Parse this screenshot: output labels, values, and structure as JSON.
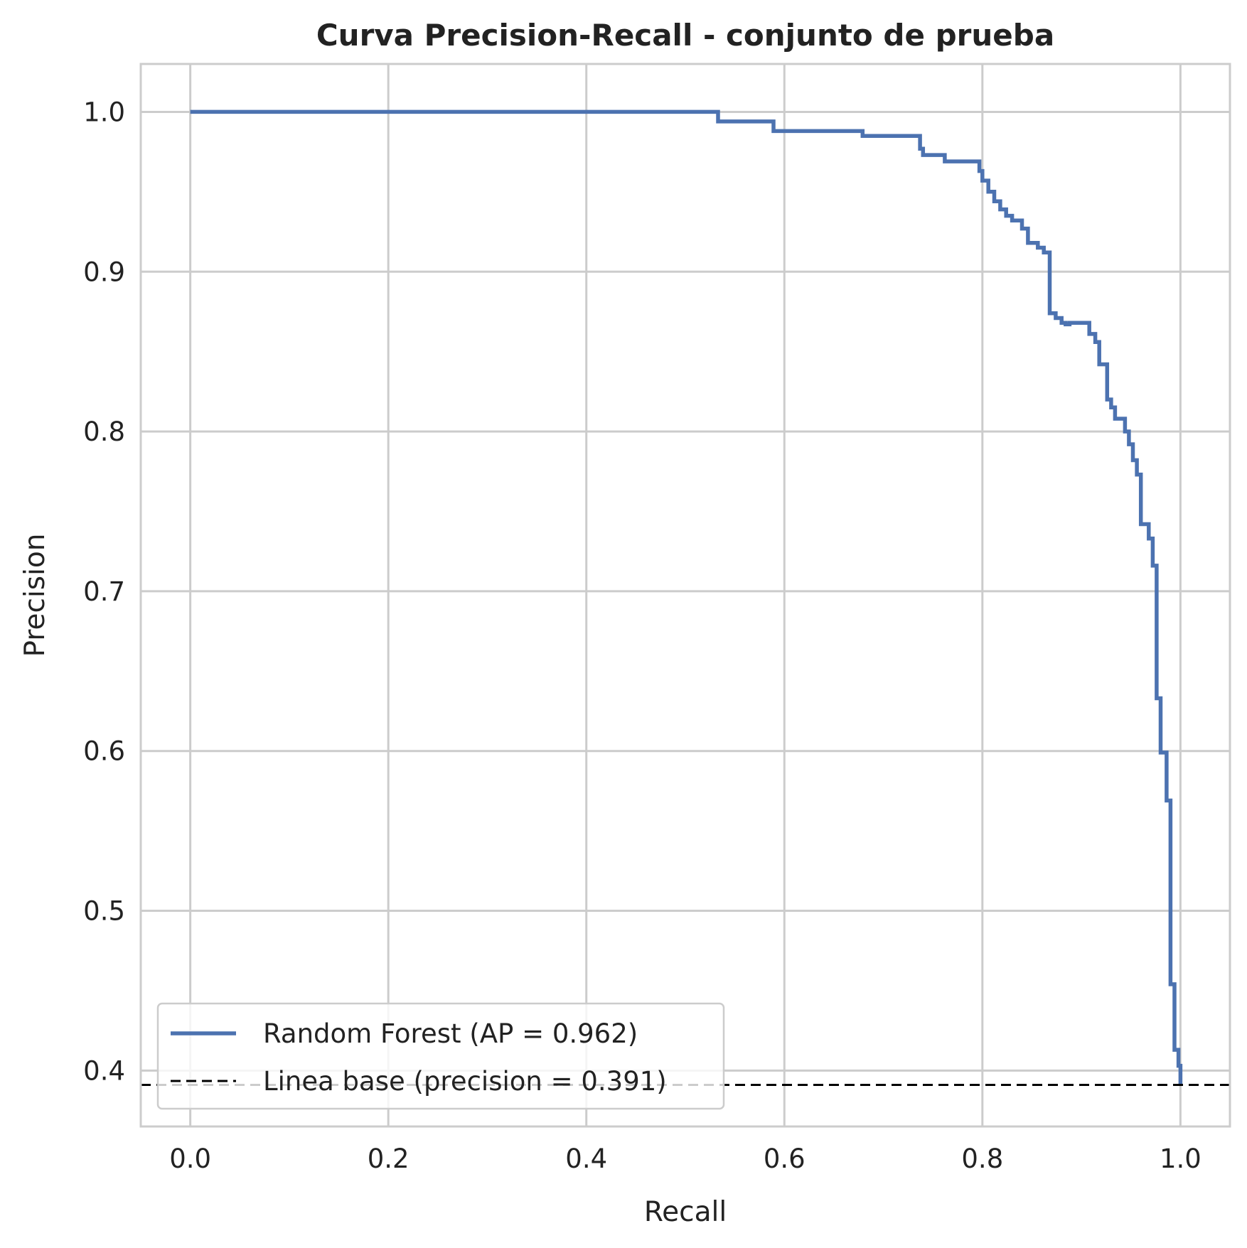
{
  "chart_data": {
    "type": "line",
    "title": "Curva Precision-Recall - conjunto de prueba",
    "xlabel": "Recall",
    "ylabel": "Precision",
    "xlim": [
      -0.05,
      1.05
    ],
    "ylim": [
      0.365,
      1.03
    ],
    "xticks": [
      0.0,
      0.2,
      0.4,
      0.6,
      0.8,
      1.0
    ],
    "xtick_labels": [
      "0.0",
      "0.2",
      "0.4",
      "0.6",
      "0.8",
      "1.0"
    ],
    "yticks": [
      0.4,
      0.5,
      0.6,
      0.7,
      0.8,
      0.9,
      1.0
    ],
    "ytick_labels": [
      "0.4",
      "0.5",
      "0.6",
      "0.7",
      "0.8",
      "0.9",
      "1.0"
    ],
    "grid": true,
    "legend_position": "lower-left",
    "series": [
      {
        "name": "Random Forest (AP = 0.962)",
        "color": "#4c72b0",
        "style": "solid",
        "x": [
          0.0,
          0.533,
          0.533,
          0.589,
          0.589,
          0.679,
          0.679,
          0.737,
          0.737,
          0.74,
          0.74,
          0.762,
          0.762,
          0.797,
          0.797,
          0.8,
          0.8,
          0.806,
          0.806,
          0.812,
          0.812,
          0.818,
          0.818,
          0.824,
          0.824,
          0.83,
          0.83,
          0.84,
          0.84,
          0.846,
          0.846,
          0.856,
          0.856,
          0.862,
          0.862,
          0.868,
          0.868,
          0.874,
          0.874,
          0.88,
          0.88,
          0.884,
          0.884,
          0.888,
          0.888,
          0.908,
          0.908,
          0.914,
          0.914,
          0.918,
          0.918,
          0.926,
          0.926,
          0.93,
          0.93,
          0.934,
          0.934,
          0.944,
          0.944,
          0.948,
          0.948,
          0.952,
          0.952,
          0.956,
          0.956,
          0.96,
          0.96,
          0.968,
          0.968,
          0.972,
          0.972,
          0.976,
          0.976,
          0.98,
          0.98,
          0.986,
          0.986,
          0.99,
          0.99,
          0.994,
          0.994,
          0.998,
          0.998,
          1.0,
          1.0
        ],
        "y": [
          1.0,
          1.0,
          0.994,
          0.994,
          0.988,
          0.988,
          0.985,
          0.985,
          0.977,
          0.977,
          0.973,
          0.973,
          0.969,
          0.969,
          0.963,
          0.963,
          0.957,
          0.957,
          0.95,
          0.95,
          0.944,
          0.944,
          0.939,
          0.939,
          0.935,
          0.935,
          0.932,
          0.932,
          0.927,
          0.927,
          0.918,
          0.918,
          0.915,
          0.915,
          0.912,
          0.912,
          0.874,
          0.874,
          0.871,
          0.871,
          0.868,
          0.868,
          0.867,
          0.867,
          0.868,
          0.868,
          0.861,
          0.861,
          0.856,
          0.856,
          0.842,
          0.842,
          0.82,
          0.82,
          0.815,
          0.815,
          0.808,
          0.808,
          0.8,
          0.8,
          0.792,
          0.792,
          0.782,
          0.782,
          0.773,
          0.773,
          0.742,
          0.742,
          0.733,
          0.733,
          0.716,
          0.716,
          0.633,
          0.633,
          0.599,
          0.599,
          0.569,
          0.569,
          0.454,
          0.454,
          0.413,
          0.413,
          0.403,
          0.403,
          0.391
        ]
      },
      {
        "name": "Linea base (precision = 0.391)",
        "color": "#000000",
        "style": "dashed",
        "x": [
          -0.05,
          1.05
        ],
        "y": [
          0.391,
          0.391
        ]
      }
    ]
  }
}
